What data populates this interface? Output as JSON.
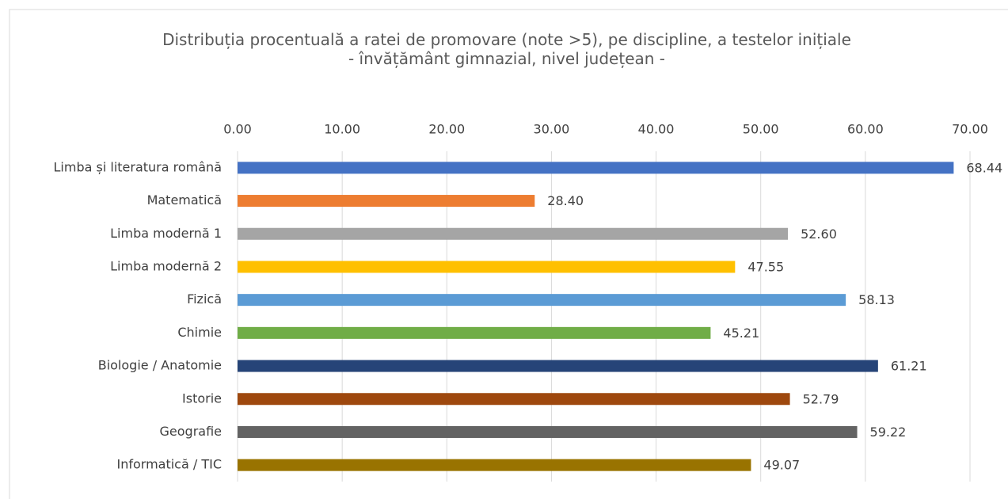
{
  "chart_data": {
    "type": "bar",
    "orientation": "horizontal",
    "title": "Distribuția procentuală a ratei de promovare (note >5), pe discipline, a testelor inițiale",
    "subtitle": "- învățământ gimnazial, nivel județean -",
    "categories": [
      "Limba și literatura română",
      "Matematică",
      "Limba modernă 1",
      "Limba modernă 2",
      "Fizică",
      "Chimie",
      "Biologie / Anatomie",
      "Istorie",
      "Geografie",
      "Informatică / TIC"
    ],
    "values": [
      68.44,
      28.4,
      52.6,
      47.55,
      58.13,
      45.21,
      61.21,
      52.79,
      59.22,
      49.07
    ],
    "value_labels": [
      "68.44",
      "28.40",
      "52.60",
      "47.55",
      "58.13",
      "45.21",
      "61.21",
      "52.79",
      "59.22",
      "49.07"
    ],
    "colors": [
      "#4472c4",
      "#ed7d31",
      "#a5a5a5",
      "#ffc000",
      "#5b9bd5",
      "#70ad47",
      "#264478",
      "#9e480e",
      "#636363",
      "#997300"
    ],
    "xlim": [
      0,
      70
    ],
    "xticks": [
      {
        "value": 0,
        "label": "0.00"
      },
      {
        "value": 10,
        "label": "10.00"
      },
      {
        "value": 20,
        "label": "20.00"
      },
      {
        "value": 30,
        "label": "30.00"
      },
      {
        "value": 40,
        "label": "40.00"
      },
      {
        "value": 50,
        "label": "50.00"
      },
      {
        "value": 60,
        "label": "60.00"
      },
      {
        "value": 70,
        "label": "70.00"
      }
    ],
    "grid": true
  }
}
